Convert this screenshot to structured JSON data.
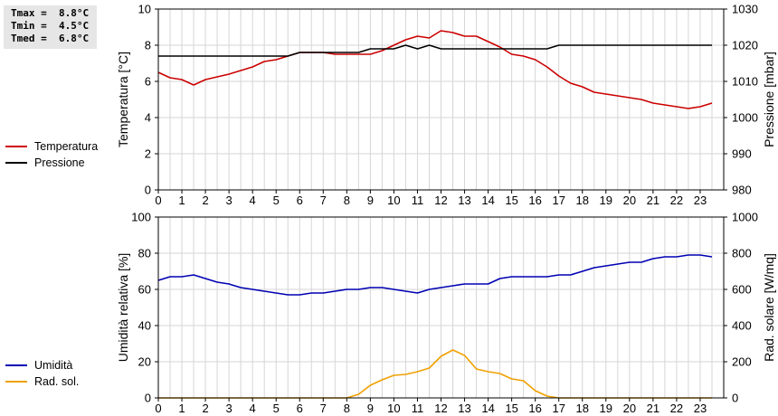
{
  "stats": {
    "tmax": "Tmax =  8.8°C",
    "tmin": "Tmin =  4.5°C",
    "tmed": "Tmed =  6.8°C"
  },
  "legend_top": [
    {
      "label": "Temperatura",
      "color": "#cc0000"
    },
    {
      "label": "Pressione",
      "color": "#000000"
    }
  ],
  "legend_bottom": [
    {
      "label": "Umidità",
      "color": "#0000b4"
    },
    {
      "label": "Rad. sol.",
      "color": "#f0a000"
    }
  ],
  "chart_data": [
    {
      "type": "line",
      "xlim": [
        0,
        24
      ],
      "xticks": [
        "0",
        "1",
        "2",
        "3",
        "4",
        "5",
        "6",
        "7",
        "8",
        "9",
        "10",
        "11",
        "12",
        "13",
        "14",
        "15",
        "16",
        "17",
        "18",
        "19",
        "20",
        "21",
        "22",
        "23"
      ],
      "ylabel": "Temperatura [°C]",
      "ylim": [
        0,
        10
      ],
      "yticks": [
        "0",
        "2",
        "4",
        "6",
        "8",
        "10"
      ],
      "y2label": "Pressione [mbar]",
      "y2lim": [
        980,
        1030
      ],
      "y2ticks": [
        "980",
        "990",
        "1000",
        "1010",
        "1020",
        "1030"
      ],
      "grid": true,
      "series": [
        {
          "name": "Temperatura",
          "color": "#cc0000",
          "axis": "left",
          "x": [
            0,
            0.5,
            1,
            1.5,
            2,
            3,
            4,
            4.5,
            5,
            5.5,
            6,
            6.5,
            7,
            7.5,
            8,
            8.5,
            9,
            9.5,
            10,
            10.5,
            11,
            11.5,
            12,
            12.5,
            13,
            13.5,
            14,
            14.5,
            15,
            15.5,
            16,
            16.5,
            17,
            17.5,
            18,
            18.5,
            19,
            19.5,
            20,
            20.5,
            21,
            21.5,
            22,
            22.5,
            23,
            23.5
          ],
          "y": [
            6.5,
            6.2,
            6.1,
            5.8,
            6.1,
            6.4,
            6.8,
            7.1,
            7.2,
            7.4,
            7.6,
            7.6,
            7.6,
            7.5,
            7.5,
            7.5,
            7.5,
            7.7,
            8.0,
            8.3,
            8.5,
            8.4,
            8.8,
            8.7,
            8.5,
            8.5,
            8.2,
            7.9,
            7.5,
            7.4,
            7.2,
            6.8,
            6.3,
            5.9,
            5.7,
            5.4,
            5.3,
            5.2,
            5.1,
            5.0,
            4.8,
            4.7,
            4.6,
            4.5,
            4.6,
            4.8
          ]
        },
        {
          "name": "Pressione",
          "color": "#000000",
          "axis": "right",
          "x": [
            0,
            5.5,
            6,
            8.5,
            9,
            10,
            10.5,
            11,
            11.5,
            12,
            14,
            16.5,
            17,
            23.5
          ],
          "y": [
            1017,
            1017,
            1018,
            1018,
            1019,
            1019,
            1020,
            1019,
            1020,
            1019,
            1019,
            1019,
            1020,
            1020
          ]
        }
      ]
    },
    {
      "type": "line",
      "xlim": [
        0,
        24
      ],
      "xticks": [
        "0",
        "1",
        "2",
        "3",
        "4",
        "5",
        "6",
        "7",
        "8",
        "9",
        "10",
        "11",
        "12",
        "13",
        "14",
        "15",
        "16",
        "17",
        "18",
        "19",
        "20",
        "21",
        "22",
        "23"
      ],
      "ylabel": "Umidità relativa [%]",
      "ylim": [
        0,
        100
      ],
      "yticks": [
        "0",
        "20",
        "40",
        "60",
        "80",
        "100"
      ],
      "y2label": "Rad. solare [W/mq]",
      "y2lim": [
        0,
        1000
      ],
      "y2ticks": [
        "0",
        "200",
        "400",
        "600",
        "800",
        "1000"
      ],
      "grid": true,
      "series": [
        {
          "name": "Umidità",
          "color": "#0000b4",
          "axis": "left",
          "x": [
            0,
            0.5,
            1,
            1.5,
            2,
            2.5,
            3,
            3.5,
            4,
            4.5,
            5,
            5.5,
            6,
            6.5,
            7,
            7.5,
            8,
            8.5,
            9,
            9.5,
            10,
            10.5,
            11,
            11.5,
            12,
            12.5,
            13,
            13.5,
            14,
            14.5,
            15,
            15.5,
            16,
            16.5,
            17,
            17.5,
            18,
            18.5,
            19,
            19.5,
            20,
            20.5,
            21,
            21.5,
            22,
            22.5,
            23,
            23.5
          ],
          "y": [
            65,
            67,
            67,
            68,
            66,
            64,
            63,
            61,
            60,
            59,
            58,
            57,
            57,
            58,
            58,
            59,
            60,
            60,
            61,
            61,
            60,
            59,
            58,
            60,
            61,
            62,
            63,
            63,
            63,
            66,
            67,
            67,
            67,
            67,
            68,
            68,
            70,
            72,
            73,
            74,
            75,
            75,
            77,
            78,
            78,
            79,
            79,
            78
          ]
        },
        {
          "name": "Rad. sol.",
          "color": "#f0a000",
          "axis": "right",
          "x": [
            0,
            8,
            8.5,
            9,
            9.5,
            10,
            10.5,
            11,
            11.5,
            12,
            12.5,
            13,
            13.5,
            14,
            14.5,
            15,
            15.5,
            16,
            16.5,
            17,
            23.5
          ],
          "y": [
            0,
            0,
            20,
            70,
            100,
            125,
            130,
            145,
            165,
            230,
            265,
            235,
            160,
            145,
            135,
            105,
            95,
            40,
            10,
            0,
            0
          ]
        }
      ]
    }
  ]
}
